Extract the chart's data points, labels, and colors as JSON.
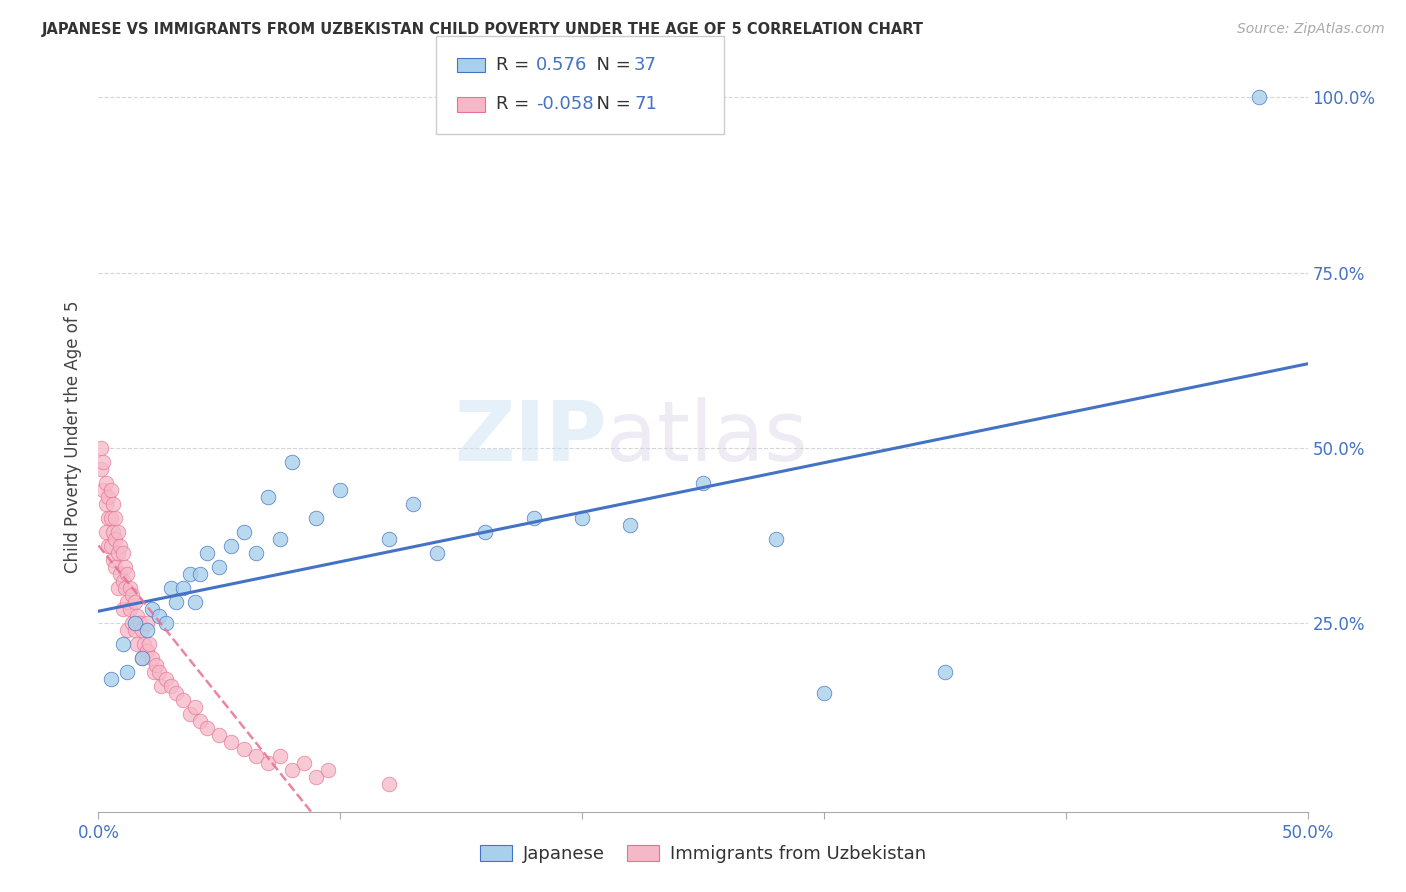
{
  "title": "JAPANESE VS IMMIGRANTS FROM UZBEKISTAN CHILD POVERTY UNDER THE AGE OF 5 CORRELATION CHART",
  "source": "Source: ZipAtlas.com",
  "ylabel": "Child Poverty Under the Age of 5",
  "legend_label_1": "Japanese",
  "legend_label_2": "Immigrants from Uzbekistan",
  "R1": 0.576,
  "N1": 37,
  "R2": -0.058,
  "N2": 71,
  "color1": "#A8D0EC",
  "color2": "#F5B8C8",
  "line_color1": "#4472C4",
  "line_color2": "#E87090",
  "xlim": [
    0.0,
    0.5
  ],
  "ylim": [
    -0.02,
    1.05
  ],
  "xticks": [
    0.0,
    0.1,
    0.2,
    0.3,
    0.4,
    0.5
  ],
  "xticklabels_sparse": {
    "0.0": "0.0%",
    "0.5": "50.0%"
  },
  "yticks_right": [
    0.0,
    0.25,
    0.5,
    0.75,
    1.0
  ],
  "yticklabels_right": [
    "",
    "25.0%",
    "50.0%",
    "75.0%",
    "100.0%"
  ],
  "japanese_x": [
    0.005,
    0.01,
    0.012,
    0.015,
    0.018,
    0.02,
    0.022,
    0.025,
    0.028,
    0.03,
    0.032,
    0.035,
    0.038,
    0.04,
    0.042,
    0.045,
    0.05,
    0.055,
    0.06,
    0.065,
    0.07,
    0.075,
    0.08,
    0.09,
    0.1,
    0.12,
    0.13,
    0.14,
    0.16,
    0.18,
    0.2,
    0.22,
    0.25,
    0.28,
    0.3,
    0.35,
    0.48
  ],
  "japanese_y": [
    0.17,
    0.22,
    0.18,
    0.25,
    0.2,
    0.24,
    0.27,
    0.26,
    0.25,
    0.3,
    0.28,
    0.3,
    0.32,
    0.28,
    0.32,
    0.35,
    0.33,
    0.36,
    0.38,
    0.35,
    0.43,
    0.37,
    0.48,
    0.4,
    0.44,
    0.37,
    0.42,
    0.35,
    0.38,
    0.4,
    0.4,
    0.39,
    0.45,
    0.37,
    0.15,
    0.18,
    1.0
  ],
  "uzbekistan_x": [
    0.001,
    0.001,
    0.002,
    0.002,
    0.003,
    0.003,
    0.003,
    0.004,
    0.004,
    0.004,
    0.005,
    0.005,
    0.005,
    0.006,
    0.006,
    0.006,
    0.007,
    0.007,
    0.007,
    0.008,
    0.008,
    0.008,
    0.009,
    0.009,
    0.01,
    0.01,
    0.01,
    0.011,
    0.011,
    0.012,
    0.012,
    0.012,
    0.013,
    0.013,
    0.014,
    0.014,
    0.015,
    0.015,
    0.016,
    0.016,
    0.017,
    0.018,
    0.018,
    0.019,
    0.02,
    0.02,
    0.021,
    0.022,
    0.023,
    0.024,
    0.025,
    0.026,
    0.028,
    0.03,
    0.032,
    0.035,
    0.038,
    0.04,
    0.042,
    0.045,
    0.05,
    0.055,
    0.06,
    0.065,
    0.07,
    0.075,
    0.08,
    0.085,
    0.09,
    0.095,
    0.12
  ],
  "uzbekistan_y": [
    0.5,
    0.47,
    0.48,
    0.44,
    0.45,
    0.42,
    0.38,
    0.43,
    0.4,
    0.36,
    0.44,
    0.4,
    0.36,
    0.42,
    0.38,
    0.34,
    0.4,
    0.37,
    0.33,
    0.38,
    0.35,
    0.3,
    0.36,
    0.32,
    0.35,
    0.31,
    0.27,
    0.33,
    0.3,
    0.32,
    0.28,
    0.24,
    0.3,
    0.27,
    0.29,
    0.25,
    0.28,
    0.24,
    0.26,
    0.22,
    0.25,
    0.24,
    0.2,
    0.22,
    0.25,
    0.21,
    0.22,
    0.2,
    0.18,
    0.19,
    0.18,
    0.16,
    0.17,
    0.16,
    0.15,
    0.14,
    0.12,
    0.13,
    0.11,
    0.1,
    0.09,
    0.08,
    0.07,
    0.06,
    0.05,
    0.06,
    0.04,
    0.05,
    0.03,
    0.04,
    0.02
  ],
  "watermark_zip": "ZIP",
  "watermark_atlas": "atlas",
  "grid_color": "#CCCCCC",
  "grid_style": "--"
}
